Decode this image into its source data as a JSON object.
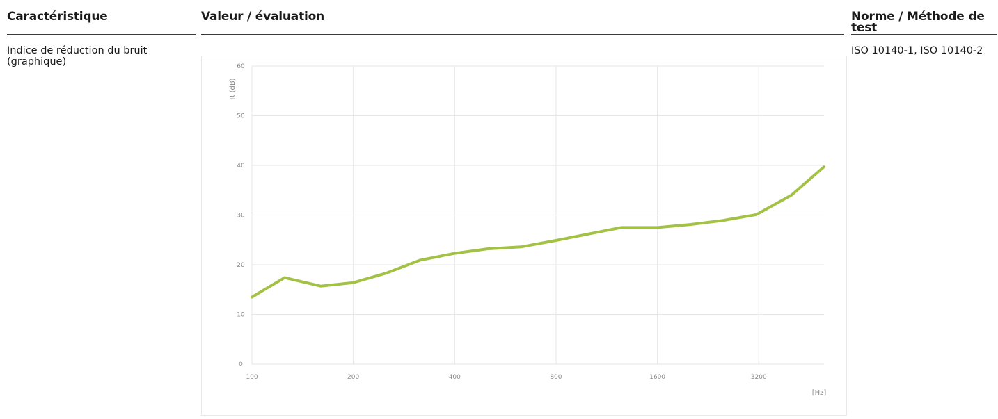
{
  "table": {
    "headers": {
      "characteristic": "Caractéristique",
      "value": "Valeur / évaluation",
      "standard": "Norme / Méthode de test"
    },
    "row": {
      "characteristic": "Indice de réduction du bruit (graphique)",
      "standard": "ISO 10140-1, ISO 10140-2"
    }
  },
  "chart_data": {
    "type": "line",
    "ylabel": "R (dB)",
    "xlabel": "[Hz]",
    "ylim": [
      0,
      60
    ],
    "y_ticks": [
      "0",
      "10",
      "20",
      "30",
      "40",
      "50",
      "60"
    ],
    "x_ticks": [
      "100",
      "200",
      "400",
      "800",
      "1600",
      "3200"
    ],
    "grid": true,
    "line_color": "#a3c245",
    "series": [
      {
        "x": [
          100,
          125,
          160,
          200,
          250,
          315,
          400,
          500,
          630,
          800,
          1000,
          1250,
          1600,
          2000,
          2500,
          3150,
          4000,
          5000
        ],
        "values": [
          13.5,
          17.4,
          15.7,
          16.4,
          18.3,
          20.9,
          22.3,
          23.2,
          23.6,
          24.9,
          26.2,
          27.5,
          27.5,
          28.1,
          28.9,
          30.1,
          34.0,
          39.7
        ]
      }
    ]
  }
}
